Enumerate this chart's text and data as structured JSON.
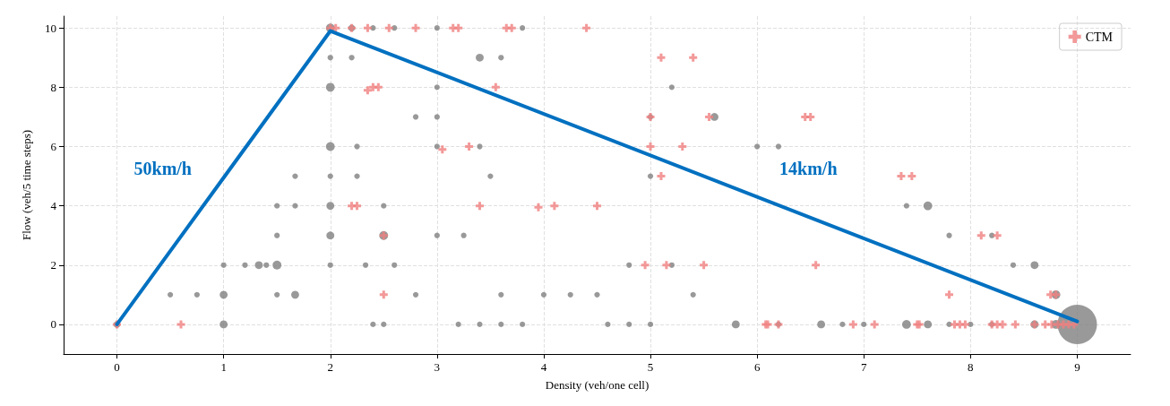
{
  "chart_data": {
    "type": "scatter",
    "xlabel": "Density (veh/one cell)",
    "ylabel": "Flow (veh/5 time steps)",
    "xlim": [
      -0.5,
      9.5
    ],
    "ylim": [
      -1,
      10.4
    ],
    "xticks": [
      0,
      1,
      2,
      3,
      4,
      5,
      6,
      7,
      8,
      9
    ],
    "yticks": [
      0,
      2,
      4,
      6,
      8,
      10
    ],
    "grid": true,
    "legend": "top right",
    "annotations": [
      "50km/h",
      "14km/h"
    ],
    "series": [
      {
        "type": "bubble",
        "color": "#808080",
        "x": [
          2.0,
          2.2,
          2.4,
          2.6,
          3.0,
          3.8,
          2.0,
          2.2,
          3.4,
          3.6,
          2.0,
          3.0,
          5.2,
          2.8,
          3.0,
          5.0,
          5.6,
          2.0,
          2.25,
          3.0,
          3.4,
          6.0,
          6.2,
          1.67,
          2.0,
          2.25,
          3.5,
          5.0,
          1.5,
          1.67,
          2.0,
          2.5,
          7.4,
          7.6,
          1.5,
          2.0,
          2.5,
          3.0,
          3.25,
          7.8,
          8.2,
          1.0,
          1.2,
          1.33,
          1.4,
          1.5,
          2.0,
          2.33,
          2.6,
          4.8,
          5.2,
          8.4,
          8.6,
          0.5,
          0.75,
          1.0,
          1.5,
          1.67,
          2.8,
          3.6,
          4.0,
          4.25,
          4.5,
          5.4,
          8.8,
          0.0,
          1.0,
          2.4,
          2.5,
          3.2,
          3.4,
          3.6,
          3.8,
          4.6,
          4.8,
          5.0,
          5.8,
          6.2,
          6.6,
          6.8,
          7.0,
          7.4,
          7.6,
          7.8,
          8.0,
          8.2,
          8.6,
          8.8,
          9.0
        ],
        "values": [
          10,
          10,
          10,
          10,
          10,
          10,
          9,
          9,
          9,
          9,
          8,
          8,
          8,
          7,
          7,
          7,
          7,
          6,
          6,
          6,
          6,
          6,
          6,
          5,
          5,
          5,
          5,
          5,
          4,
          4,
          4,
          4,
          4,
          4,
          3,
          3,
          3,
          3,
          3,
          3,
          3,
          2,
          2,
          2,
          2,
          2,
          2,
          2,
          2,
          2,
          2,
          2,
          2,
          1,
          1,
          1,
          1,
          1,
          1,
          1,
          1,
          1,
          1,
          1,
          1,
          0,
          0,
          0,
          0,
          0,
          0,
          0,
          0,
          0,
          0,
          0,
          0,
          0,
          0,
          0,
          0,
          0,
          0,
          0,
          0,
          0,
          0,
          0,
          0
        ],
        "sizes": [
          0.05,
          0.03,
          0.02,
          0.02,
          0.02,
          0.02,
          0.02,
          0.02,
          0.04,
          0.02,
          0.05,
          0.02,
          0.02,
          0.02,
          0.02,
          0.02,
          0.04,
          0.05,
          0.02,
          0.02,
          0.02,
          0.02,
          0.02,
          0.02,
          0.02,
          0.02,
          0.02,
          0.02,
          0.02,
          0.02,
          0.04,
          0.02,
          0.02,
          0.05,
          0.02,
          0.04,
          0.05,
          0.02,
          0.02,
          0.02,
          0.02,
          0.02,
          0.02,
          0.04,
          0.02,
          0.05,
          0.02,
          0.02,
          0.02,
          0.02,
          0.02,
          0.02,
          0.04,
          0.02,
          0.02,
          0.04,
          0.02,
          0.04,
          0.02,
          0.02,
          0.02,
          0.02,
          0.02,
          0.02,
          0.05,
          0.03,
          0.04,
          0.02,
          0.02,
          0.02,
          0.02,
          0.02,
          0.02,
          0.02,
          0.02,
          0.02,
          0.04,
          0.02,
          0.04,
          0.02,
          0.02,
          0.05,
          0.04,
          0.02,
          0.02,
          0.02,
          0.04,
          0.05,
          1
        ]
      },
      {
        "name": "CTM",
        "color": "#f08080",
        "marker": "cross",
        "x": [
          2.0,
          2.05,
          2.2,
          2.35,
          2.55,
          2.8,
          3.15,
          3.2,
          3.65,
          3.7,
          4.4,
          5.1,
          5.4,
          2.35,
          2.4,
          2.45,
          3.55,
          5.0,
          5.55,
          6.45,
          6.5,
          3.05,
          3.3,
          5.0,
          5.3,
          5.1,
          7.35,
          7.45,
          2.2,
          2.25,
          3.4,
          3.95,
          4.1,
          4.5,
          2.5,
          8.1,
          8.25,
          4.95,
          5.15,
          5.5,
          6.55,
          2.5,
          7.8,
          8.75,
          8.8,
          0.0,
          0.6,
          6.08,
          6.1,
          6.2,
          6.9,
          7.1,
          7.5,
          7.52,
          7.85,
          7.9,
          7.95,
          8.2,
          8.25,
          8.3,
          8.42,
          8.6,
          8.7,
          8.76,
          8.82,
          8.87,
          8.92,
          8.97
        ],
        "values": [
          10,
          10,
          10,
          10,
          10,
          10,
          10,
          10,
          10,
          10,
          10,
          9,
          9,
          7.9,
          8,
          8,
          8,
          7,
          7,
          7,
          7,
          5.9,
          6,
          6,
          6,
          5,
          5,
          5,
          4,
          4,
          4,
          3.95,
          4,
          4,
          3,
          3,
          3,
          2,
          2,
          2,
          2,
          1,
          1,
          1,
          1,
          0,
          0,
          0,
          0,
          0,
          0,
          0,
          0,
          0,
          0,
          0,
          0,
          0,
          0,
          0,
          0,
          0,
          0,
          0,
          0,
          0,
          0,
          0
        ]
      },
      {
        "type": "line",
        "color": "#0070c0",
        "line_style": "solid",
        "marker": "none",
        "x": [
          0,
          2,
          9
        ],
        "values": [
          0,
          9.9,
          0.1
        ]
      }
    ]
  }
}
